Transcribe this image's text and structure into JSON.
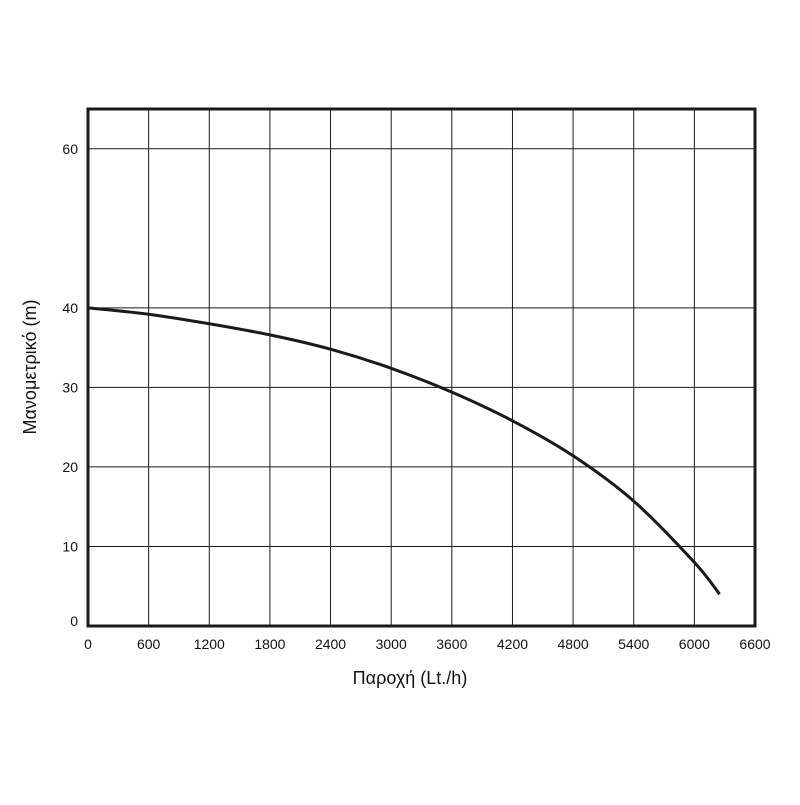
{
  "chart_data": {
    "type": "line",
    "title": "",
    "xlabel": "Παροχή (Lt./h)",
    "ylabel": "Μανομετρικό  (m)",
    "xlim": [
      0,
      6600
    ],
    "ylim": [
      0,
      65
    ],
    "x_ticks": [
      0,
      600,
      1200,
      1800,
      2400,
      3000,
      3600,
      4200,
      4800,
      5400,
      6000,
      6600
    ],
    "y_ticks": [
      0,
      10,
      20,
      30,
      40,
      60
    ],
    "grid": true,
    "series": [
      {
        "color": "#1a1a1a",
        "x": [
          0,
          600,
          1200,
          1800,
          2400,
          3000,
          3600,
          4200,
          4800,
          5400,
          6000,
          6250
        ],
        "y": [
          40,
          39.2,
          38,
          36.6,
          34.8,
          32.4,
          29.4,
          25.8,
          21.4,
          15.7,
          8,
          4
        ]
      }
    ]
  }
}
